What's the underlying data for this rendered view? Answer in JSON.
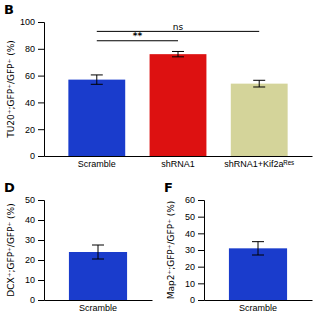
{
  "chart_data": [
    {
      "type": "bar",
      "title": "B",
      "categories": [
        "Scramble",
        "shRNA1",
        "shRNA1+Kif2aᴿᵉˢ"
      ],
      "values": [
        57,
        76,
        54
      ],
      "errors": [
        3.5,
        2,
        2.5
      ],
      "colors": [
        "#1a3ccc",
        "#dd1111",
        "#d4d49a"
      ],
      "ylabel": "TU20⁺;GFP⁺/GFP⁺ (%)",
      "ylim": [
        0,
        100
      ],
      "yticks": [
        0,
        20,
        40,
        60,
        80,
        100
      ],
      "annotations": [
        {
          "text": "**",
          "y": 86,
          "x": [
            "Scramble",
            "shRNA1"
          ]
        },
        {
          "text": "ns",
          "y": 93,
          "x": [
            "Scramble",
            "shRNA1+Kif2aᴿᵉˢ"
          ]
        }
      ]
    },
    {
      "type": "bar",
      "title": "D",
      "categories": [
        "Scramble"
      ],
      "values": [
        24
      ],
      "errors": [
        3.5
      ],
      "colors": [
        "#1a3ccc"
      ],
      "ylabel": "DCX⁺;GFP⁺/GFP⁺ (%)",
      "ylim": [
        0,
        50
      ],
      "yticks": [
        0,
        10,
        20,
        30,
        40,
        50
      ]
    },
    {
      "type": "bar",
      "title": "F",
      "categories": [
        "Scramble"
      ],
      "values": [
        31
      ],
      "errors": [
        4
      ],
      "colors": [
        "#1a3ccc"
      ],
      "ylabel": "Map2⁺;GFP⁺/GFP⁺ (%)",
      "ylim": [
        0,
        60
      ],
      "yticks": [
        0,
        10,
        20,
        30,
        40,
        50,
        60
      ]
    }
  ]
}
